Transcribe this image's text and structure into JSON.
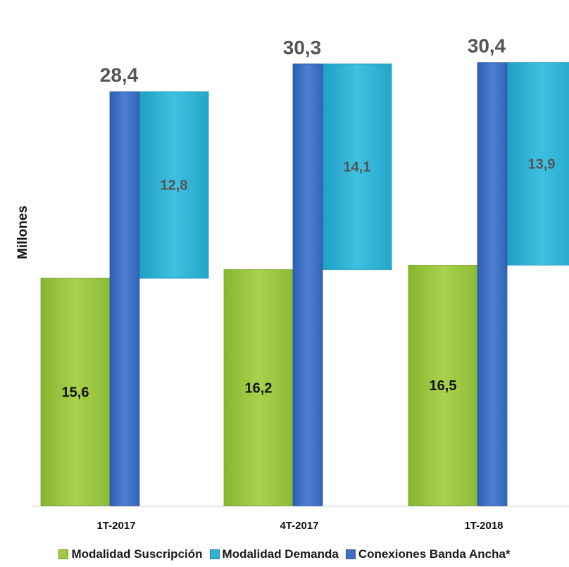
{
  "chart_data": {
    "type": "bar",
    "ylabel": "Millones",
    "categories": [
      "1T-2017",
      "4T-2017",
      "1T-2018"
    ],
    "series": [
      {
        "name": "Modalidad Suscripción",
        "values": [
          15.6,
          16.2,
          16.5
        ],
        "labels": [
          "15,6",
          "16,2",
          "16,5"
        ],
        "color": "#9cc843"
      },
      {
        "name": "Modalidad Demanda",
        "values": [
          12.8,
          14.1,
          13.9
        ],
        "labels": [
          "12,8",
          "14,1",
          "13,9"
        ],
        "color": "#2fb2d4"
      },
      {
        "name": "Conexiones Banda Ancha*",
        "values": [
          28.4,
          30.3,
          30.4
        ],
        "labels": [
          "28,4",
          "30,3",
          "30,4"
        ],
        "color": "#3e6fc4"
      }
    ],
    "ylim": [
      0,
      32
    ],
    "grid": false,
    "legend_position": "bottom"
  },
  "colors": {
    "suscripcion": "#9cc843",
    "demanda": "#2fb2d4",
    "conexiones": "#3e6fc4",
    "label_dark": "#111111",
    "label_grey": "#555555"
  },
  "legend": [
    {
      "label": "Modalidad Suscripción",
      "color": "#9cc843"
    },
    {
      "label": "Modalidad Demanda",
      "color": "#2fb2d4"
    },
    {
      "label": "Conexiones Banda Ancha*",
      "color": "#3e6fc4"
    }
  ]
}
